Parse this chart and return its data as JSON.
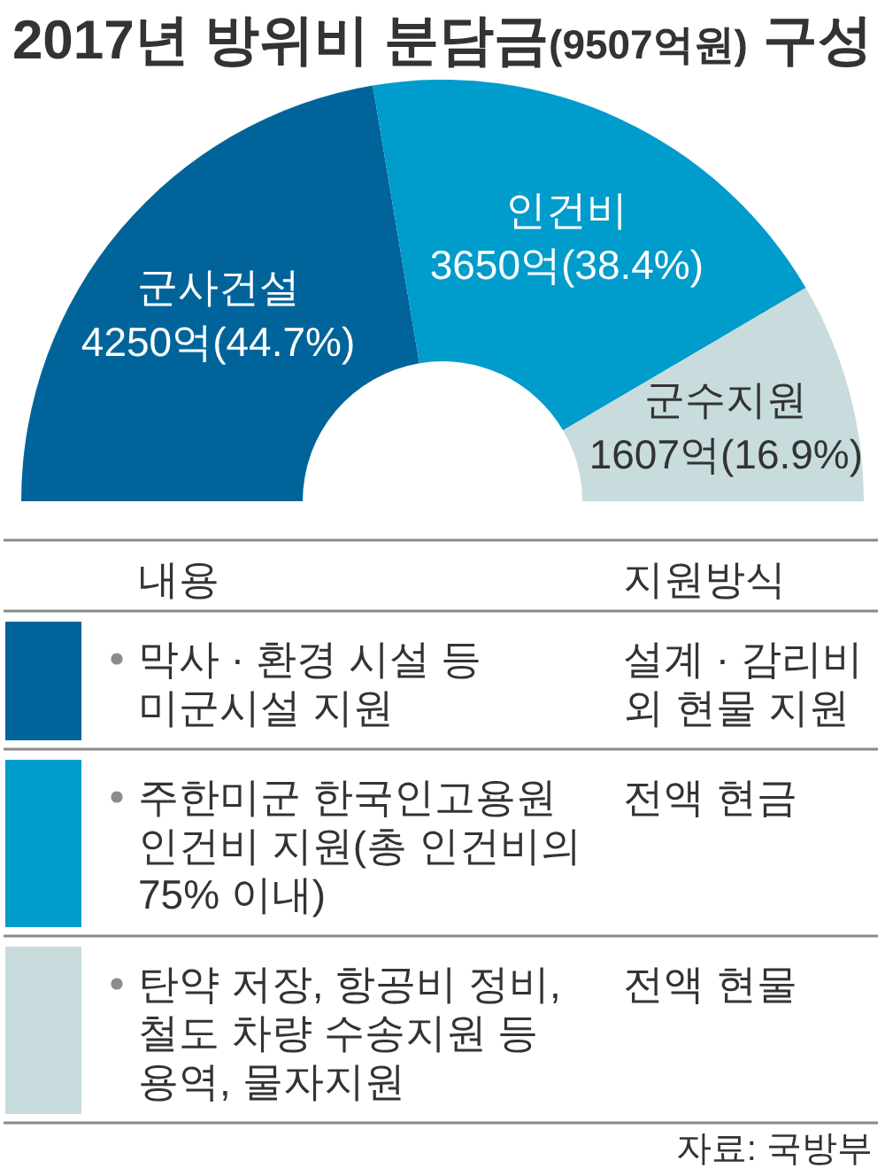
{
  "chart_data": {
    "type": "donut",
    "title": "2017년 방위비 분담금(9507억원) 구성",
    "categories": [
      "군사건설",
      "인건비",
      "군수지원"
    ],
    "values": [
      4250,
      3650,
      1607
    ],
    "value_labels": [
      "4250억(44.7%)",
      "3650억(38.4%)",
      "1607억(16.9%)"
    ],
    "colors": [
      "#00649a",
      "#009ccc",
      "#c8dcdd"
    ],
    "annotations": [
      "내용",
      "지원방식",
      "막사 · 환경 시설 등 미군시설 지원",
      "설계 · 감리비 외 현물 지원",
      "주한미군 한국인고용원 인건비 지원(총 인건비의 75% 이내)",
      "전액 현금",
      "탄약 저장, 항공비 정비, 철도 차량 수송지원 등 용역, 물자지원",
      "전액 현물",
      "자료: 국방부"
    ]
  }
}
